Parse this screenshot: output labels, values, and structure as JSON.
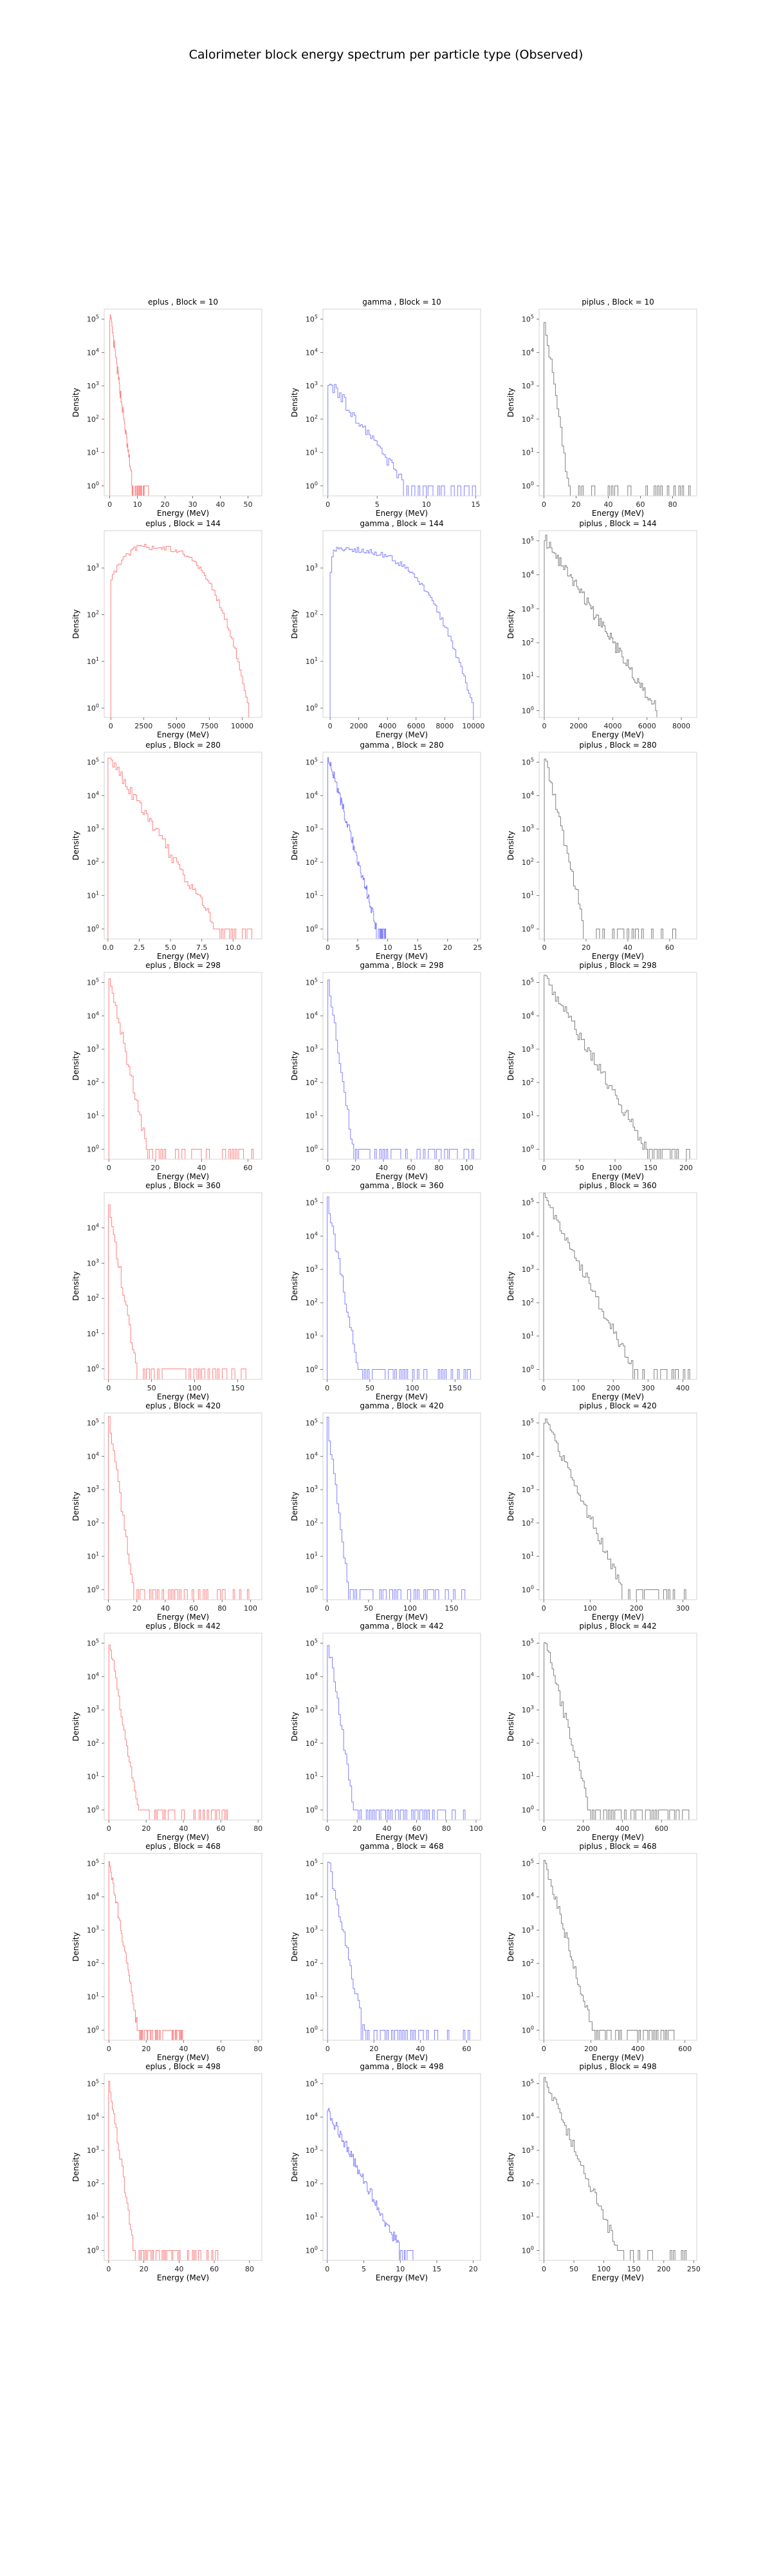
{
  "suptitle": "Calorimeter block energy spectrum per particle type (Observed)",
  "colors": {
    "eplus": "#ff8080",
    "gamma": "#8080ff",
    "piplus": "#808080"
  },
  "chart_data": [
    {
      "type": "histogram",
      "title": "eplus , Block = 10",
      "xlabel": "Energy (MeV)",
      "ylabel": "Density",
      "yscale": "log",
      "color": "#ff8080",
      "xlim": [
        -2,
        55
      ],
      "xticks": [
        0,
        10,
        20,
        30,
        40,
        50
      ],
      "ylim_log": [
        -0.3,
        5.3
      ],
      "yticks": [
        0,
        1,
        2,
        3,
        4,
        5
      ],
      "shape": {
        "type": "exp",
        "peak": 5.2,
        "scale": 1.6,
        "end": 14
      }
    },
    {
      "type": "histogram",
      "title": "gamma , Block = 10",
      "xlabel": "Energy (MeV)",
      "ylabel": "Density",
      "yscale": "log",
      "color": "#8080ff",
      "xlim": [
        -0.5,
        15.5
      ],
      "xticks": [
        0,
        5,
        10,
        15
      ],
      "ylim_log": [
        -0.3,
        5.3
      ],
      "yticks": [
        0,
        1,
        2,
        3,
        4,
        5
      ],
      "shape": {
        "type": "exp",
        "peak": 3.2,
        "scale": 2.5,
        "end": 15
      }
    },
    {
      "type": "histogram",
      "title": "piplus , Block = 10",
      "xlabel": "Energy (MeV)",
      "ylabel": "Density",
      "yscale": "log",
      "color": "#808080",
      "xlim": [
        -3,
        95
      ],
      "xticks": [
        0,
        20,
        40,
        60,
        80
      ],
      "ylim_log": [
        -0.3,
        5.3
      ],
      "yticks": [
        0,
        1,
        2,
        3,
        4,
        5
      ],
      "shape": {
        "type": "exp",
        "peak": 5.2,
        "scale": 3.0,
        "end": 92
      }
    },
    {
      "type": "histogram",
      "title": "eplus , Block = 144",
      "xlabel": "Energy (MeV)",
      "ylabel": "Density",
      "yscale": "log",
      "color": "#ff8080",
      "xlim": [
        -500,
        11500
      ],
      "xticks": [
        0,
        2500,
        5000,
        7500,
        10000
      ],
      "ylim_log": [
        -0.2,
        3.8
      ],
      "yticks": [
        0,
        1,
        2,
        3
      ],
      "shape": {
        "type": "dome",
        "peak": 3.45,
        "start": 0,
        "end": 10500,
        "mode": 2500
      }
    },
    {
      "type": "histogram",
      "title": "gamma , Block = 144",
      "xlabel": "Energy (MeV)",
      "ylabel": "Density",
      "yscale": "log",
      "color": "#8080ff",
      "xlim": [
        -500,
        10500
      ],
      "xticks": [
        0,
        2000,
        4000,
        6000,
        8000,
        10000
      ],
      "ylim_log": [
        -0.2,
        3.8
      ],
      "yticks": [
        0,
        1,
        2,
        3
      ],
      "shape": {
        "type": "dome",
        "peak": 3.4,
        "start": 0,
        "end": 10000,
        "mode": 300
      }
    },
    {
      "type": "histogram",
      "title": "piplus , Block = 144",
      "xlabel": "Energy (MeV)",
      "ylabel": "Density",
      "yscale": "log",
      "color": "#808080",
      "xlim": [
        -300,
        8900
      ],
      "xticks": [
        0,
        2000,
        4000,
        6000,
        8000
      ],
      "ylim_log": [
        -0.2,
        5.3
      ],
      "yticks": [
        0,
        1,
        2,
        3,
        4,
        5
      ],
      "shape": {
        "type": "exp",
        "peak": 5.1,
        "scale": 1300,
        "end": 6800
      }
    },
    {
      "type": "histogram",
      "title": "eplus , Block = 280",
      "xlabel": "Energy (MeV)",
      "ylabel": "Density",
      "yscale": "log",
      "color": "#ff8080",
      "xlim": [
        -0.3,
        12.3
      ],
      "xticks": [
        0.0,
        2.5,
        5.0,
        7.5,
        10.0
      ],
      "ylim_log": [
        -0.3,
        5.3
      ],
      "yticks": [
        0,
        1,
        2,
        3,
        4,
        5
      ],
      "shape": {
        "type": "exp",
        "peak": 5.2,
        "scale": 1.7,
        "end": 11.5
      }
    },
    {
      "type": "histogram",
      "title": "gamma , Block = 280",
      "xlabel": "Energy (MeV)",
      "ylabel": "Density",
      "yscale": "log",
      "color": "#8080ff",
      "xlim": [
        -0.8,
        25.5
      ],
      "xticks": [
        0,
        5,
        10,
        15,
        20,
        25
      ],
      "ylim_log": [
        -0.3,
        5.3
      ],
      "yticks": [
        0,
        1,
        2,
        3,
        4,
        5
      ],
      "shape": {
        "type": "exp",
        "peak": 5.2,
        "scale": 1.6,
        "end": 10
      }
    },
    {
      "type": "histogram",
      "title": "piplus , Block = 280",
      "xlabel": "Energy (MeV)",
      "ylabel": "Density",
      "yscale": "log",
      "color": "#808080",
      "xlim": [
        -2.5,
        73
      ],
      "xticks": [
        0,
        20,
        40,
        60
      ],
      "ylim_log": [
        -0.3,
        5.3
      ],
      "yticks": [
        0,
        1,
        2,
        3,
        4,
        5
      ],
      "shape": {
        "type": "exp",
        "peak": 5.2,
        "scale": 3.8,
        "end": 70
      }
    },
    {
      "type": "histogram",
      "title": "eplus , Block = 298",
      "xlabel": "Energy (MeV)",
      "ylabel": "Density",
      "yscale": "log",
      "color": "#ff8080",
      "xlim": [
        -2,
        66
      ],
      "xticks": [
        0,
        20,
        40,
        60
      ],
      "ylim_log": [
        -0.3,
        5.3
      ],
      "yticks": [
        0,
        1,
        2,
        3,
        4,
        5
      ],
      "shape": {
        "type": "exp",
        "peak": 5.2,
        "scale": 3.2,
        "end": 63
      }
    },
    {
      "type": "histogram",
      "title": "gamma , Block = 298",
      "xlabel": "Energy (MeV)",
      "ylabel": "Density",
      "yscale": "log",
      "color": "#8080ff",
      "xlim": [
        -3.5,
        110
      ],
      "xticks": [
        0,
        20,
        40,
        60,
        80,
        100
      ],
      "ylim_log": [
        -0.3,
        5.3
      ],
      "yticks": [
        0,
        1,
        2,
        3,
        4,
        5
      ],
      "shape": {
        "type": "exp",
        "peak": 5.2,
        "scale": 3.5,
        "end": 105
      }
    },
    {
      "type": "histogram",
      "title": "piplus , Block = 298",
      "xlabel": "Energy (MeV)",
      "ylabel": "Density",
      "yscale": "log",
      "color": "#808080",
      "xlim": [
        -7,
        215
      ],
      "xticks": [
        0,
        50,
        100,
        150,
        200
      ],
      "ylim_log": [
        -0.3,
        5.3
      ],
      "yticks": [
        0,
        1,
        2,
        3,
        4,
        5
      ],
      "shape": {
        "type": "exp",
        "peak": 5.2,
        "scale": 28,
        "end": 205
      }
    },
    {
      "type": "histogram",
      "title": "eplus , Block = 360",
      "xlabel": "Energy (MeV)",
      "ylabel": "Density",
      "yscale": "log",
      "color": "#ff8080",
      "xlim": [
        -5,
        178
      ],
      "xticks": [
        0,
        50,
        100,
        150
      ],
      "ylim_log": [
        -0.3,
        5.0
      ],
      "yticks": [
        0,
        1,
        2,
        3,
        4
      ],
      "shape": {
        "type": "exp",
        "peak": 4.7,
        "scale": 7,
        "end": 165
      }
    },
    {
      "type": "histogram",
      "title": "gamma , Block = 360",
      "xlabel": "Energy (MeV)",
      "ylabel": "Density",
      "yscale": "log",
      "color": "#8080ff",
      "xlim": [
        -5,
        180
      ],
      "xticks": [
        0,
        50,
        100,
        150
      ],
      "ylim_log": [
        -0.3,
        5.3
      ],
      "yticks": [
        0,
        1,
        2,
        3,
        4,
        5
      ],
      "shape": {
        "type": "exp",
        "peak": 5.2,
        "scale": 7,
        "end": 170
      }
    },
    {
      "type": "histogram",
      "title": "piplus , Block = 360",
      "xlabel": "Energy (MeV)",
      "ylabel": "Density",
      "yscale": "log",
      "color": "#808080",
      "xlim": [
        -13,
        440
      ],
      "xticks": [
        0,
        100,
        200,
        300,
        400
      ],
      "ylim_log": [
        -0.3,
        5.3
      ],
      "yticks": [
        0,
        1,
        2,
        3,
        4,
        5
      ],
      "shape": {
        "type": "exp",
        "peak": 5.2,
        "scale": 50,
        "end": 420
      }
    },
    {
      "type": "histogram",
      "title": "eplus , Block = 420",
      "xlabel": "Energy (MeV)",
      "ylabel": "Density",
      "yscale": "log",
      "color": "#ff8080",
      "xlim": [
        -3,
        108
      ],
      "xticks": [
        0,
        20,
        40,
        60,
        80,
        100
      ],
      "ylim_log": [
        -0.3,
        5.3
      ],
      "yticks": [
        0,
        1,
        2,
        3,
        4,
        5
      ],
      "shape": {
        "type": "exp",
        "peak": 5.2,
        "scale": 3.5,
        "end": 100
      }
    },
    {
      "type": "histogram",
      "title": "gamma , Block = 420",
      "xlabel": "Energy (MeV)",
      "ylabel": "Density",
      "yscale": "log",
      "color": "#8080ff",
      "xlim": [
        -5,
        185
      ],
      "xticks": [
        0,
        50,
        100,
        150
      ],
      "ylim_log": [
        -0.3,
        5.3
      ],
      "yticks": [
        0,
        1,
        2,
        3,
        4,
        5
      ],
      "shape": {
        "type": "exp",
        "peak": 5.2,
        "scale": 5,
        "end": 178
      }
    },
    {
      "type": "histogram",
      "title": "piplus , Block = 420",
      "xlabel": "Energy (MeV)",
      "ylabel": "Density",
      "yscale": "log",
      "color": "#808080",
      "xlim": [
        -10,
        330
      ],
      "xticks": [
        0,
        100,
        200,
        300
      ],
      "ylim_log": [
        -0.3,
        5.3
      ],
      "yticks": [
        0,
        1,
        2,
        3,
        4,
        5
      ],
      "shape": {
        "type": "exp",
        "peak": 5.2,
        "scale": 33,
        "end": 310
      }
    },
    {
      "type": "histogram",
      "title": "eplus , Block = 442",
      "xlabel": "Energy (MeV)",
      "ylabel": "Density",
      "yscale": "log",
      "color": "#ff8080",
      "xlim": [
        -2.5,
        82
      ],
      "xticks": [
        0,
        20,
        40,
        60,
        80
      ],
      "ylim_log": [
        -0.3,
        5.3
      ],
      "yticks": [
        0,
        1,
        2,
        3,
        4,
        5
      ],
      "shape": {
        "type": "exp",
        "peak": 5.2,
        "scale": 3.0,
        "end": 65
      }
    },
    {
      "type": "histogram",
      "title": "gamma , Block = 442",
      "xlabel": "Energy (MeV)",
      "ylabel": "Density",
      "yscale": "log",
      "color": "#8080ff",
      "xlim": [
        -3,
        103
      ],
      "xticks": [
        0,
        20,
        40,
        60,
        80,
        100
      ],
      "ylim_log": [
        -0.3,
        5.3
      ],
      "yticks": [
        0,
        1,
        2,
        3,
        4,
        5
      ],
      "shape": {
        "type": "exp",
        "peak": 5.2,
        "scale": 3.5,
        "end": 98
      }
    },
    {
      "type": "histogram",
      "title": "piplus , Block = 442",
      "xlabel": "Energy (MeV)",
      "ylabel": "Density",
      "yscale": "log",
      "color": "#808080",
      "xlim": [
        -25,
        780
      ],
      "xticks": [
        0,
        200,
        400,
        600
      ],
      "ylim_log": [
        -0.3,
        5.3
      ],
      "yticks": [
        0,
        1,
        2,
        3,
        4,
        5
      ],
      "shape": {
        "type": "exp",
        "peak": 5.2,
        "scale": 45,
        "end": 740
      }
    },
    {
      "type": "histogram",
      "title": "eplus , Block = 468",
      "xlabel": "Energy (MeV)",
      "ylabel": "Density",
      "yscale": "log",
      "color": "#ff8080",
      "xlim": [
        -2.5,
        82
      ],
      "xticks": [
        0,
        20,
        40,
        60,
        80
      ],
      "ylim_log": [
        -0.3,
        5.3
      ],
      "yticks": [
        0,
        1,
        2,
        3,
        4,
        5
      ],
      "shape": {
        "type": "exp",
        "peak": 5.2,
        "scale": 3.0,
        "end": 40
      }
    },
    {
      "type": "histogram",
      "title": "gamma , Block = 468",
      "xlabel": "Energy (MeV)",
      "ylabel": "Density",
      "yscale": "log",
      "color": "#8080ff",
      "xlim": [
        -2,
        66
      ],
      "xticks": [
        0,
        20,
        40,
        60
      ],
      "ylim_log": [
        -0.3,
        5.3
      ],
      "yticks": [
        0,
        1,
        2,
        3,
        4,
        5
      ],
      "shape": {
        "type": "exp",
        "peak": 5.2,
        "scale": 3.0,
        "end": 62
      }
    },
    {
      "type": "histogram",
      "title": "piplus , Block = 468",
      "xlabel": "Energy (MeV)",
      "ylabel": "Density",
      "yscale": "log",
      "color": "#808080",
      "xlim": [
        -20,
        650
      ],
      "xticks": [
        0,
        200,
        400,
        600
      ],
      "ylim_log": [
        -0.3,
        5.3
      ],
      "yticks": [
        0,
        1,
        2,
        3,
        4,
        5
      ],
      "shape": {
        "type": "exp",
        "peak": 5.2,
        "scale": 40,
        "end": 560
      }
    },
    {
      "type": "histogram",
      "title": "eplus , Block = 498",
      "xlabel": "Energy (MeV)",
      "ylabel": "Density",
      "yscale": "log",
      "color": "#ff8080",
      "xlim": [
        -2.5,
        87
      ],
      "xticks": [
        0,
        20,
        40,
        60,
        80
      ],
      "ylim_log": [
        -0.3,
        5.3
      ],
      "yticks": [
        0,
        1,
        2,
        3,
        4,
        5
      ],
      "shape": {
        "type": "exp",
        "peak": 5.2,
        "scale": 2.8,
        "end": 62
      }
    },
    {
      "type": "histogram",
      "title": "gamma , Block = 498",
      "xlabel": "Energy (MeV)",
      "ylabel": "Density",
      "yscale": "log",
      "color": "#8080ff",
      "xlim": [
        -0.6,
        21
      ],
      "xticks": [
        0,
        5,
        10,
        15,
        20
      ],
      "ylim_log": [
        -0.3,
        5.3
      ],
      "yticks": [
        0,
        1,
        2,
        3,
        4,
        5
      ],
      "shape": {
        "type": "exp",
        "peak": 4.2,
        "scale": 2.4,
        "end": 12
      }
    },
    {
      "type": "histogram",
      "title": "piplus , Block = 498",
      "xlabel": "Energy (MeV)",
      "ylabel": "Density",
      "yscale": "log",
      "color": "#808080",
      "xlim": [
        -8,
        255
      ],
      "xticks": [
        0,
        50,
        100,
        150,
        200,
        250
      ],
      "ylim_log": [
        -0.3,
        5.3
      ],
      "yticks": [
        0,
        1,
        2,
        3,
        4,
        5
      ],
      "shape": {
        "type": "exp",
        "peak": 5.2,
        "scale": 24,
        "end": 240
      }
    }
  ]
}
